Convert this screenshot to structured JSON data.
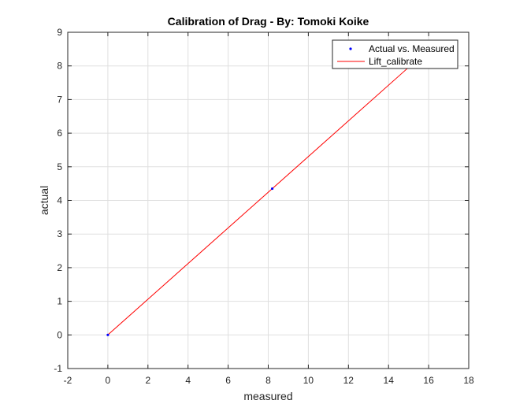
{
  "chart_data": {
    "type": "line",
    "title": "Calibration of Drag - By: Tomoki Koike",
    "xlabel": "measured",
    "ylabel": "actual",
    "xlim": [
      -2,
      18
    ],
    "ylim": [
      -1,
      9
    ],
    "xticks": [
      -2,
      0,
      2,
      4,
      6,
      8,
      10,
      12,
      14,
      16,
      18
    ],
    "yticks": [
      -1,
      0,
      1,
      2,
      3,
      4,
      5,
      6,
      7,
      8,
      9
    ],
    "grid": true,
    "legend_position": "top-right",
    "series": [
      {
        "name": "Actual vs. Measured",
        "style": "markers",
        "color": "#0000ff",
        "x": [
          0,
          8.2,
          16.4
        ],
        "y": [
          0,
          4.35,
          8.7
        ]
      },
      {
        "name": "Lift_calibrate",
        "style": "line",
        "color": "#ff0000",
        "x": [
          0,
          16.4
        ],
        "y": [
          0,
          8.7
        ]
      }
    ]
  }
}
